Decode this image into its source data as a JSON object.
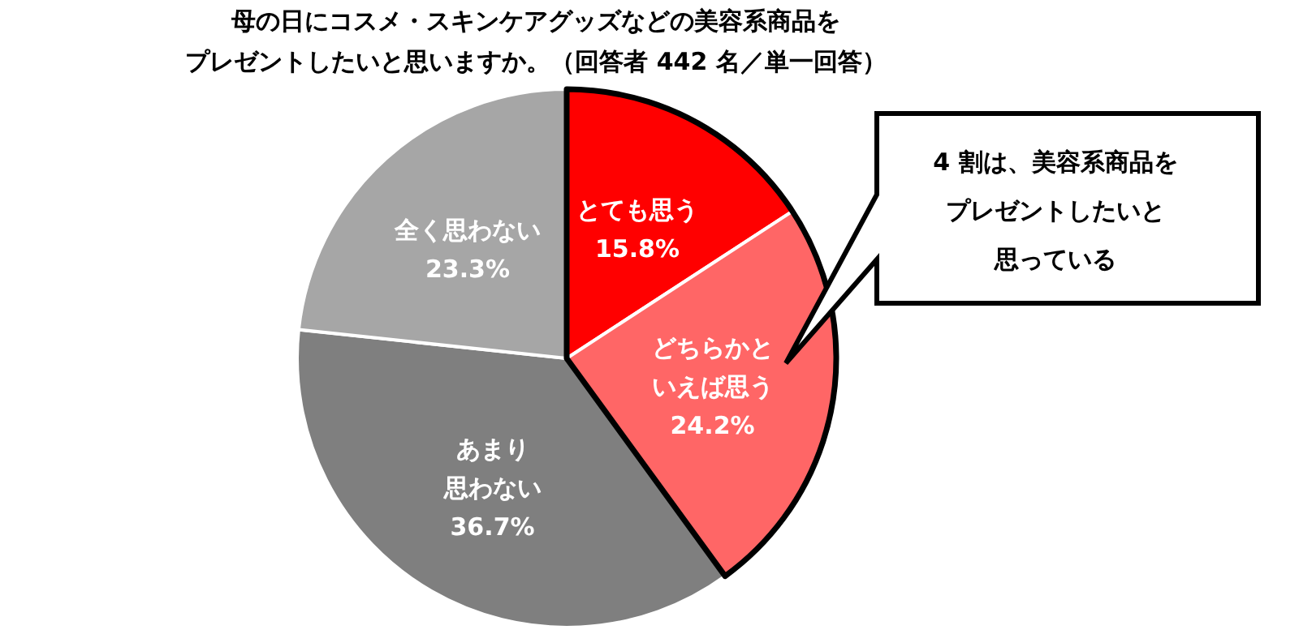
{
  "chart_data": {
    "type": "pie",
    "title": "母の日にコスメ・スキンケアグッズなどの美容系商品をプレゼントしたいと思いますか。（回答者 442 名／単一回答）",
    "categories": [
      "とても思う",
      "どちらかといえば思う",
      "あまり思わない",
      "全く思わない"
    ],
    "values": [
      15.8,
      24.2,
      36.7,
      23.3
    ],
    "colors": [
      "#ff0000",
      "#ff6666",
      "#7f7f7f",
      "#a6a6a6"
    ],
    "value_labels": [
      "15.8%",
      "24.2%",
      "36.7%",
      "23.3%"
    ],
    "annotations": [
      "4 割は、美容系商品をプレゼントしたいと思っている"
    ]
  }
}
